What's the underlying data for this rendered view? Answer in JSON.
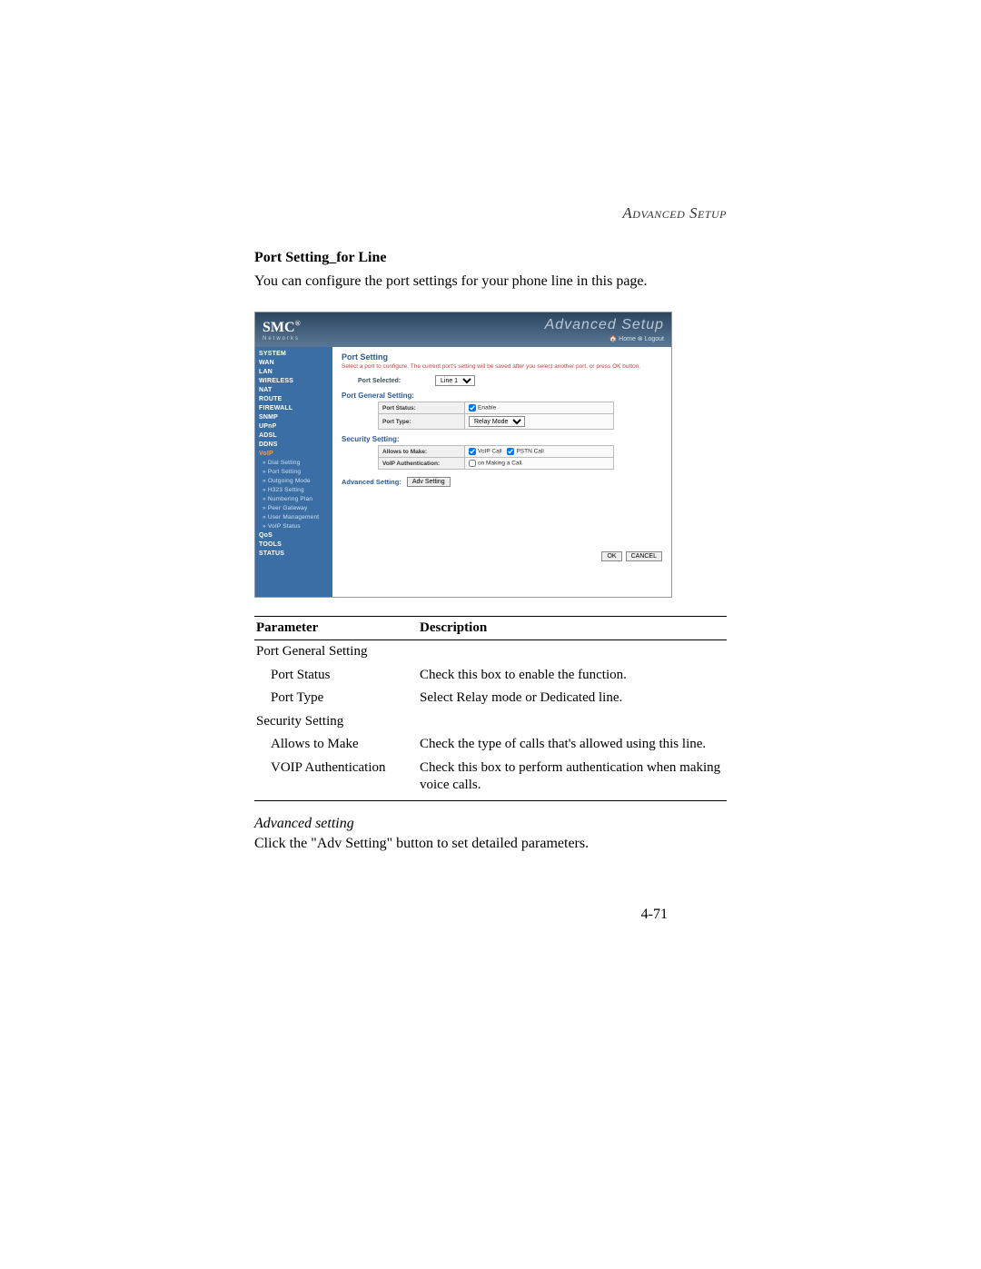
{
  "chapter": "Advanced Setup",
  "section_title": "Port Setting_for Line",
  "section_desc": "You can configure the port settings for your phone line in this page.",
  "screenshot": {
    "logo": "SMC",
    "logo_reg": "®",
    "logo_sub": "Networks",
    "header_title": "Advanced Setup",
    "header_links": "🏠 Home  ⊗ Logout",
    "sidebar": [
      {
        "label": "SYSTEM",
        "type": "main"
      },
      {
        "label": "WAN",
        "type": "main"
      },
      {
        "label": "LAN",
        "type": "main"
      },
      {
        "label": "WIRELESS",
        "type": "main"
      },
      {
        "label": "NAT",
        "type": "main"
      },
      {
        "label": "ROUTE",
        "type": "main"
      },
      {
        "label": "FIREWALL",
        "type": "main"
      },
      {
        "label": "SNMP",
        "type": "main"
      },
      {
        "label": "UPnP",
        "type": "main"
      },
      {
        "label": "ADSL",
        "type": "main"
      },
      {
        "label": "DDNS",
        "type": "main"
      },
      {
        "label": "VoIP",
        "type": "main",
        "active": true
      },
      {
        "label": "Dial Setting",
        "type": "sub"
      },
      {
        "label": "Port Setting",
        "type": "sub"
      },
      {
        "label": "Outgoing Mode",
        "type": "sub"
      },
      {
        "label": "H323 Setting",
        "type": "sub"
      },
      {
        "label": "Numbering Plan",
        "type": "sub"
      },
      {
        "label": "Peer Gateway",
        "type": "sub"
      },
      {
        "label": "User Management",
        "type": "sub"
      },
      {
        "label": "VoIP Status",
        "type": "sub"
      },
      {
        "label": "QoS",
        "type": "main"
      },
      {
        "label": "TOOLS",
        "type": "main"
      },
      {
        "label": "STATUS",
        "type": "main"
      }
    ],
    "main_title": "Port Setting",
    "instruction": "Select a port to configure. The current port's setting will be saved after you select another port, or press OK button.",
    "port_selected_label": "Port Selected:",
    "port_selected_value": "Line 1",
    "general_header": "Port General Setting:",
    "port_status_label": "Port Status:",
    "enable_label": "Enable",
    "port_type_label": "Port Type:",
    "port_type_value": "Relay Mode",
    "security_header": "Security Setting:",
    "allows_label": "Allows to Make:",
    "voip_call_label": "VoIP Call",
    "pstn_call_label": "PSTN Call",
    "voip_auth_label": "VoIP Authentication:",
    "on_making_label": "on Making a Call",
    "adv_setting_label": "Advanced Setting:",
    "adv_setting_btn": "Adv Setting",
    "ok_btn": "OK",
    "cancel_btn": "CANCEL"
  },
  "param_table": {
    "headers": [
      "Parameter",
      "Description"
    ],
    "rows": [
      {
        "p": "Port General Setting",
        "d": "",
        "indent": false
      },
      {
        "p": "Port Status",
        "d": "Check this box to enable the function.",
        "indent": true
      },
      {
        "p": "Port Type",
        "d": "Select Relay mode or Dedicated line.",
        "indent": true
      },
      {
        "p": "Security Setting",
        "d": "",
        "indent": false
      },
      {
        "p": "Allows to Make",
        "d": "Check the type of calls that's allowed using this line.",
        "indent": true
      },
      {
        "p": "VOIP Authentication",
        "d": "Check this box to perform authentication when making voice calls.",
        "indent": true
      }
    ]
  },
  "adv_label": "Advanced setting",
  "adv_desc": "Click the \"Adv Setting\" button to set detailed parameters.",
  "page_number": "4-71"
}
